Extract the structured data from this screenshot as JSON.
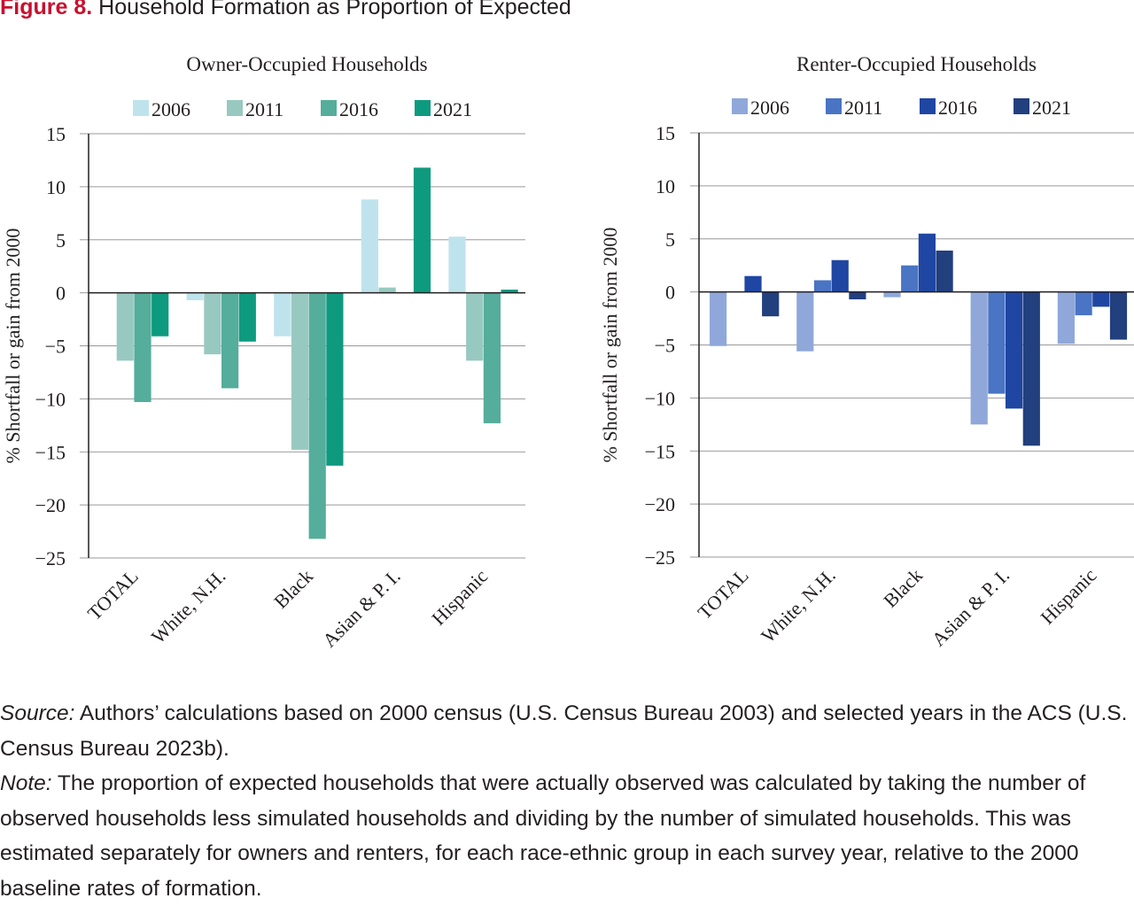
{
  "figure": {
    "label": "Figure 8.",
    "title": "Household Formation as Proportion of Expected"
  },
  "notes": {
    "source_label": "Source:",
    "source_text": " Authors’ calculations based on 2000 census (U.S. Census Bureau 2003) and selected years in the ACS (U.S. Census Bureau 2023b).",
    "note_label": "Note:",
    "note_text": " The proportion of expected households that were actually observed was calculated by taking the number of observed households less simulated households and dividing by the number of simulated households. This was estimated separately for owners and renters, for each race-ethnic group in each survey year, relative to the 2000 baseline rates of formation."
  },
  "chart_data": [
    {
      "id": "owner",
      "type": "bar",
      "title": "Owner-Occupied Households",
      "ylabel": "% Shortfall or gain from 2000",
      "xlabel": "",
      "ylim": [
        -25,
        15
      ],
      "yticks": [
        15,
        10,
        5,
        0,
        -5,
        -10,
        -15,
        -20,
        -25
      ],
      "ytick_labels": [
        "15",
        "10",
        "5",
        "0",
        "−5",
        "−10",
        "−15",
        "−20",
        "−25"
      ],
      "grid": true,
      "legend_position": "top",
      "categories": [
        "TOTAL",
        "White, N.H.",
        "Black",
        "Asian & P. I.",
        "Hispanic"
      ],
      "series": [
        {
          "name": "2006",
          "color": "#bfe3ec",
          "values": [
            0,
            -0.7,
            -4.1,
            8.8,
            5.3
          ]
        },
        {
          "name": "2011",
          "color": "#98c9c0",
          "values": [
            -6.4,
            -5.8,
            -14.8,
            0.5,
            -6.4
          ]
        },
        {
          "name": "2016",
          "color": "#55ad9b",
          "values": [
            -10.3,
            -9.0,
            -23.2,
            0,
            -12.3
          ]
        },
        {
          "name": "2021",
          "color": "#0e9a7f",
          "values": [
            -4.1,
            -4.6,
            -16.3,
            11.8,
            0.3
          ]
        }
      ]
    },
    {
      "id": "renter",
      "type": "bar",
      "title": "Renter-Occupied Households",
      "ylabel": "% Shortfall or gain from 2000",
      "xlabel": "",
      "ylim": [
        -25,
        15
      ],
      "yticks": [
        15,
        10,
        5,
        0,
        -5,
        -10,
        -15,
        -20,
        -25
      ],
      "ytick_labels": [
        "15",
        "10",
        "5",
        "0",
        "−5",
        "−10",
        "−15",
        "−20",
        "−25"
      ],
      "grid": true,
      "legend_position": "top",
      "categories": [
        "TOTAL",
        "White, N.H.",
        "Black",
        "Asian & P. I.",
        "Hispanic"
      ],
      "series": [
        {
          "name": "2006",
          "color": "#8fa8d9",
          "values": [
            -5.1,
            -5.6,
            -0.5,
            -12.5,
            -4.9
          ]
        },
        {
          "name": "2011",
          "color": "#4a74c4",
          "values": [
            0,
            1.1,
            2.5,
            -9.6,
            -2.2
          ]
        },
        {
          "name": "2016",
          "color": "#1f46a3",
          "values": [
            1.5,
            3.0,
            5.5,
            -11.0,
            -1.4
          ]
        },
        {
          "name": "2021",
          "color": "#223f7e",
          "values": [
            -2.3,
            -0.7,
            3.9,
            -14.5,
            -4.5
          ]
        }
      ]
    }
  ]
}
